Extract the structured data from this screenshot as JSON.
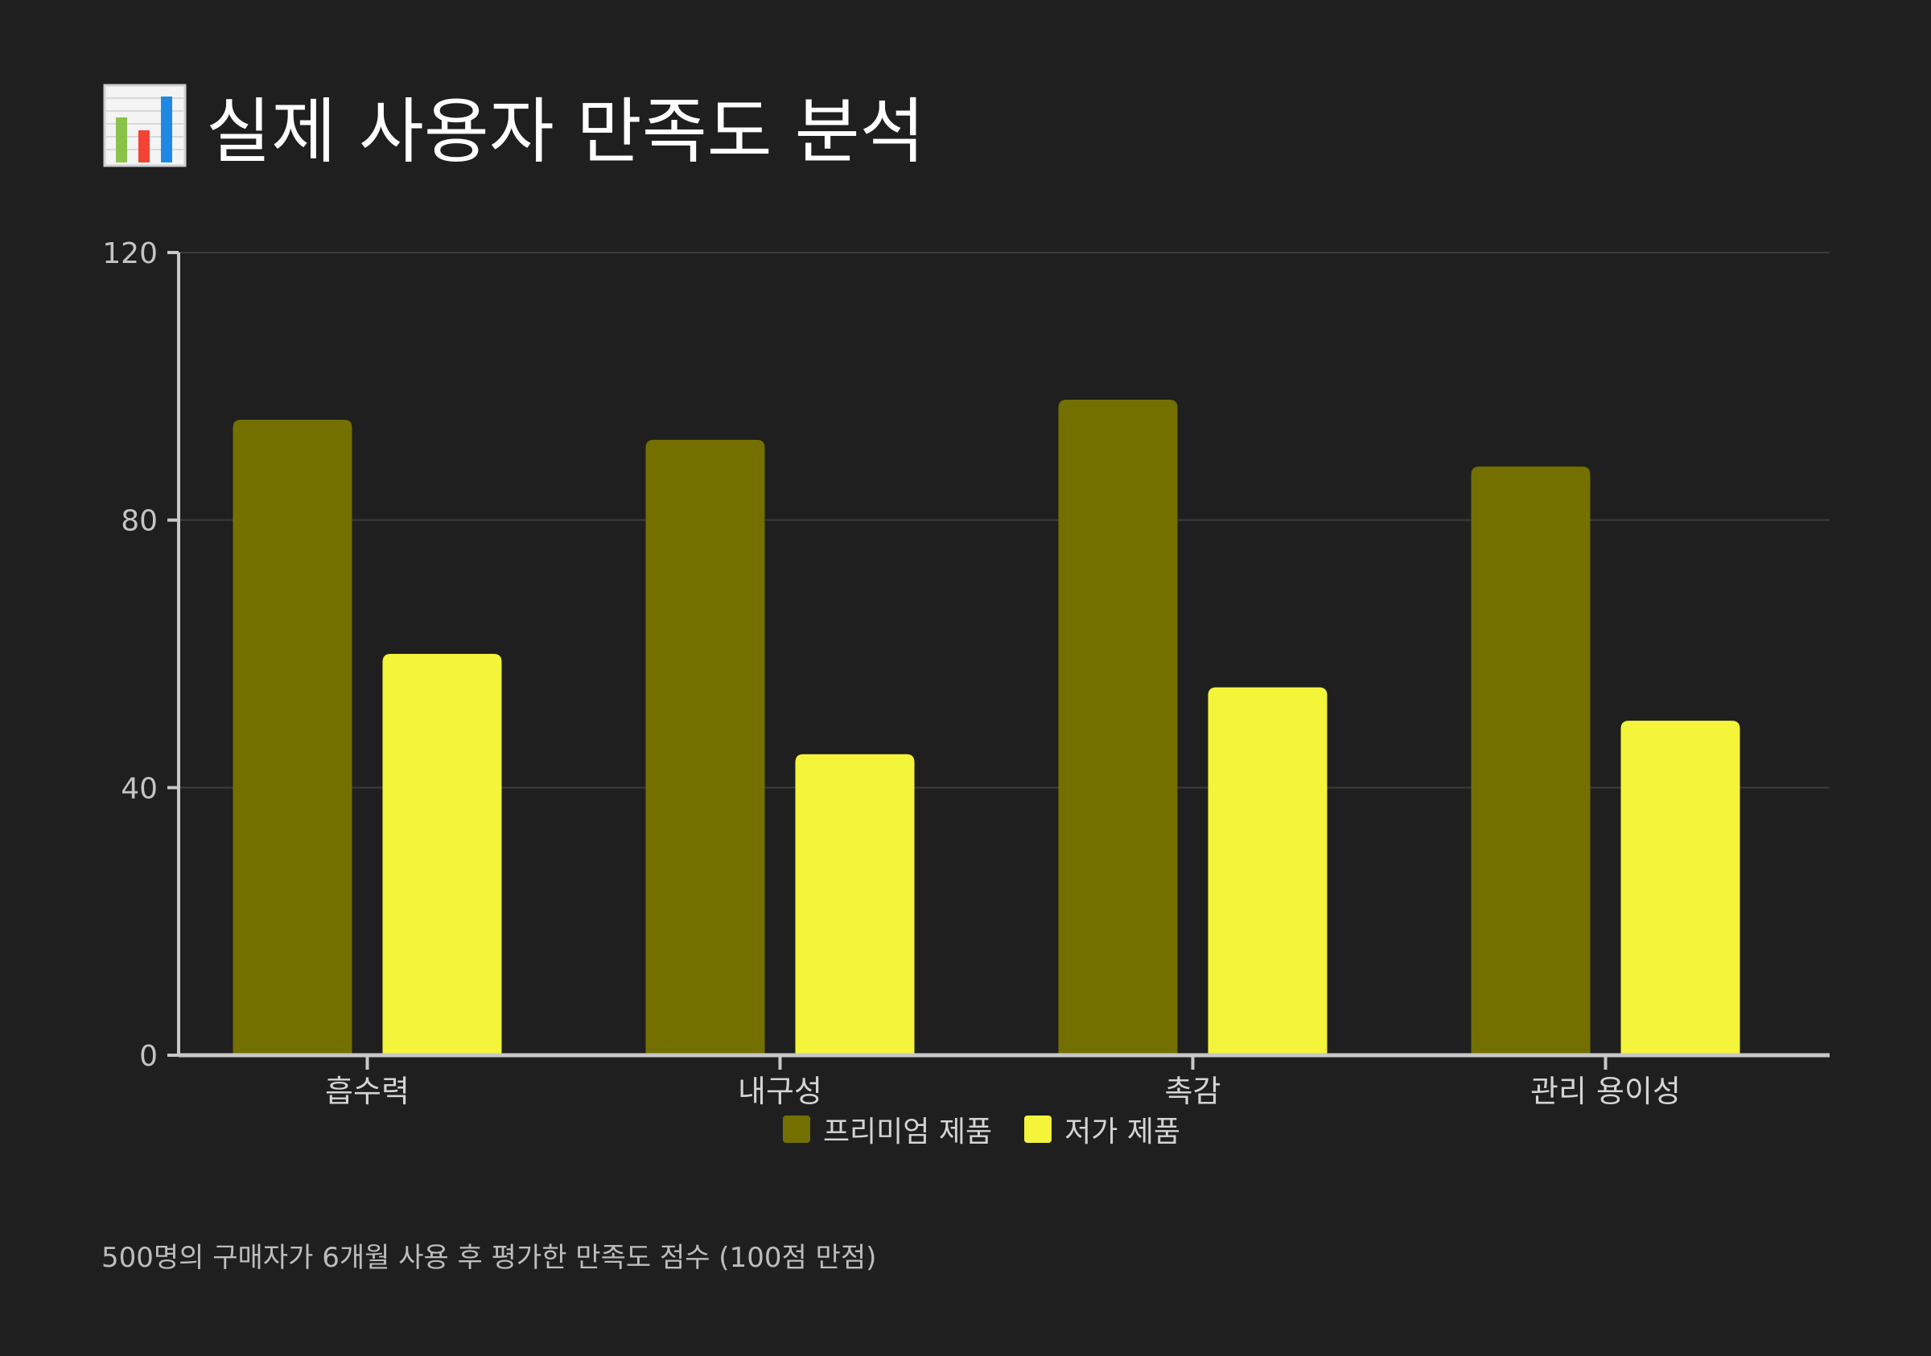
{
  "title": {
    "icon": "bar-chart-icon",
    "text": "실제 사용자 만족도 분석"
  },
  "chart_data": {
    "type": "bar",
    "title": "실제 사용자 만족도 분석",
    "categories": [
      "흡수력",
      "내구성",
      "촉감",
      "관리 용이성"
    ],
    "series": [
      {
        "name": "프리미엄 제품",
        "values": [
          95,
          92,
          98,
          88
        ],
        "color": "#737000"
      },
      {
        "name": "저가 제품",
        "values": [
          60,
          45,
          55,
          50
        ],
        "color": "#f4f43a"
      }
    ],
    "xlabel": "",
    "ylabel": "",
    "ylim": [
      0,
      120
    ],
    "yticks": [
      0,
      40,
      80,
      120
    ],
    "grid": true,
    "legend_position": "bottom"
  },
  "footnote": "500명의 구매자가 6개월 사용 후 평가한 만족도 점수 (100점 만점)",
  "colors": {
    "background": "#1f1f1f",
    "axis": "#c8c8c8",
    "grid": "#3c3c3c",
    "text": "#d4d4d4"
  }
}
